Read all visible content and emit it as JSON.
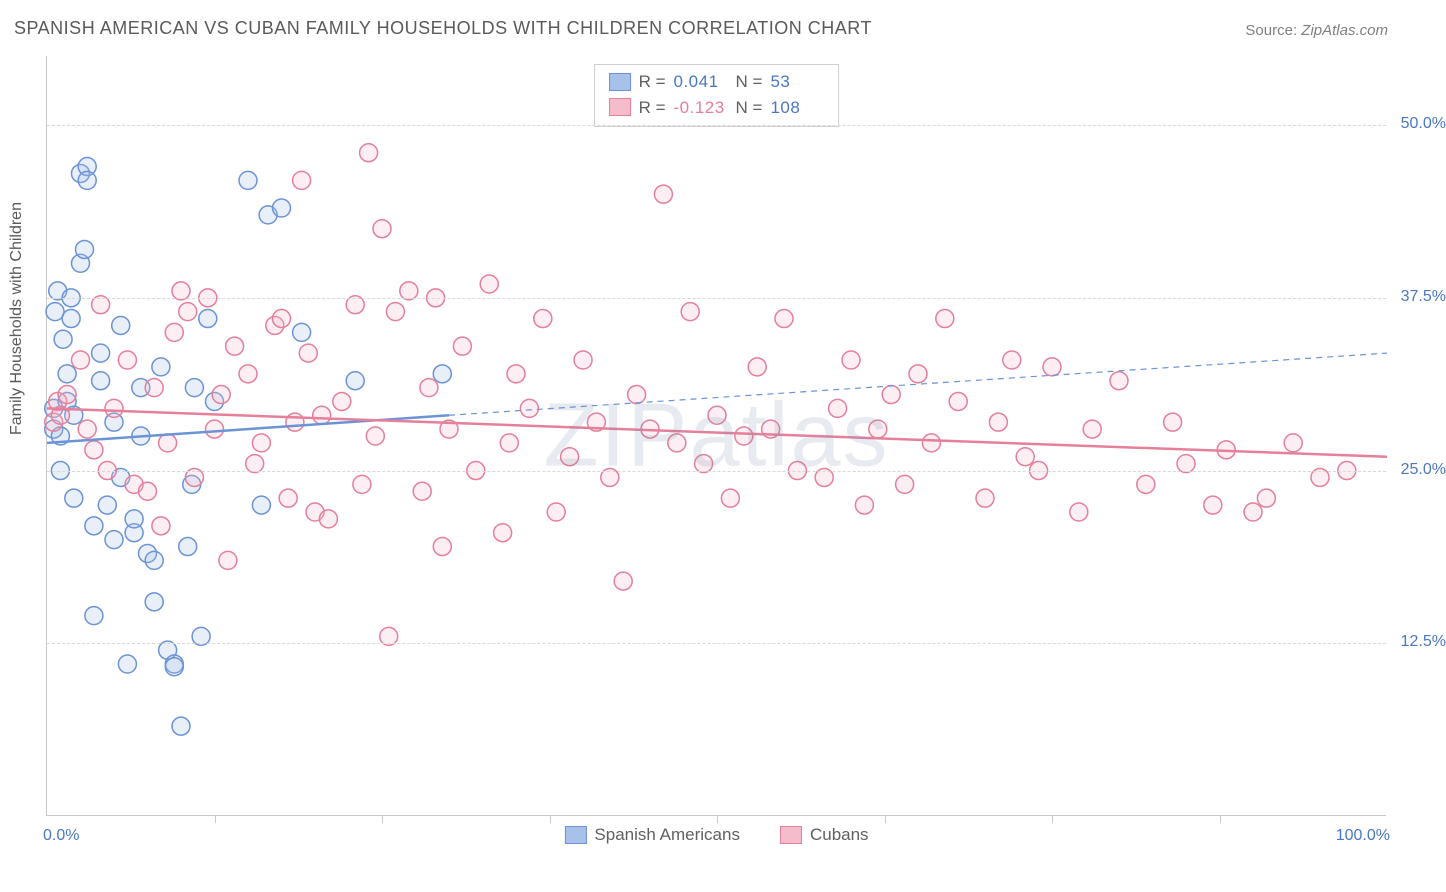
{
  "title": "SPANISH AMERICAN VS CUBAN FAMILY HOUSEHOLDS WITH CHILDREN CORRELATION CHART",
  "source_label": "Source:",
  "source_value": "ZipAtlas.com",
  "watermark": "ZIPatlas",
  "y_axis_label": "Family Households with Children",
  "chart": {
    "type": "scatter",
    "xlim": [
      0,
      100
    ],
    "ylim": [
      0,
      55
    ],
    "x_ticks": [
      0,
      100
    ],
    "x_tick_labels": [
      "0.0%",
      "100.0%"
    ],
    "x_minor_ticks": [
      12.5,
      25,
      37.5,
      50,
      62.5,
      75,
      87.5
    ],
    "y_ticks": [
      12.5,
      25.0,
      37.5,
      50.0
    ],
    "y_tick_labels": [
      "12.5%",
      "25.0%",
      "37.5%",
      "50.0%"
    ],
    "background_color": "#ffffff",
    "grid_color": "#d8d8d8",
    "axis_color": "#c8c8c8",
    "tick_label_color": "#4a77c4",
    "axis_label_color": "#5a5a5a",
    "title_color": "#5a5a5a",
    "title_fontsize": 18,
    "marker_radius": 9,
    "marker_stroke_width": 1.5,
    "marker_fill_opacity": 0.25,
    "series": [
      {
        "name": "Spanish Americans",
        "color_stroke": "#6b93d6",
        "color_fill": "#a7c1e8",
        "r_value": "0.041",
        "n_value": "53",
        "regression": {
          "x1": 0,
          "y1": 27.0,
          "x_solid_end": 30.0,
          "y_solid_end": 29.0,
          "x2": 100,
          "y2": 33.5,
          "solid_width": 2.5,
          "dash_pattern": "6,5"
        },
        "points": [
          [
            0.5,
            29.5
          ],
          [
            0.5,
            28.0
          ],
          [
            0.6,
            36.5
          ],
          [
            0.8,
            38.0
          ],
          [
            1.0,
            27.5
          ],
          [
            1.0,
            25.0
          ],
          [
            1.2,
            34.5
          ],
          [
            1.5,
            32.0
          ],
          [
            1.5,
            30.0
          ],
          [
            1.8,
            37.5
          ],
          [
            1.8,
            36.0
          ],
          [
            2.0,
            29.0
          ],
          [
            2.0,
            23.0
          ],
          [
            2.5,
            40.0
          ],
          [
            2.5,
            46.5
          ],
          [
            3.0,
            47.0
          ],
          [
            3.0,
            46.0
          ],
          [
            3.5,
            21.0
          ],
          [
            3.5,
            14.5
          ],
          [
            4.0,
            31.5
          ],
          [
            4.0,
            33.5
          ],
          [
            4.5,
            22.5
          ],
          [
            5.0,
            20.0
          ],
          [
            5.0,
            28.5
          ],
          [
            5.5,
            35.5
          ],
          [
            5.5,
            24.5
          ],
          [
            6.0,
            11.0
          ],
          [
            6.5,
            20.5
          ],
          [
            6.5,
            21.5
          ],
          [
            7.0,
            31.0
          ],
          [
            7.0,
            27.5
          ],
          [
            7.5,
            19.0
          ],
          [
            8.0,
            18.5
          ],
          [
            8.0,
            15.5
          ],
          [
            8.5,
            32.5
          ],
          [
            9.0,
            12.0
          ],
          [
            9.5,
            11.0
          ],
          [
            9.5,
            10.8
          ],
          [
            10.0,
            6.5
          ],
          [
            10.5,
            19.5
          ],
          [
            11.0,
            31.0
          ],
          [
            11.5,
            13.0
          ],
          [
            12.0,
            36.0
          ],
          [
            12.5,
            30.0
          ],
          [
            15.0,
            46.0
          ],
          [
            16.0,
            22.5
          ],
          [
            16.5,
            43.5
          ],
          [
            17.5,
            44.0
          ],
          [
            19.0,
            35.0
          ],
          [
            23.0,
            31.5
          ],
          [
            29.5,
            32.0
          ],
          [
            10.8,
            24.0
          ],
          [
            2.8,
            41.0
          ]
        ]
      },
      {
        "name": "Cubans",
        "color_stroke": "#e57f9a",
        "color_fill": "#f5bccb",
        "r_value": "-0.123",
        "n_value": "108",
        "regression": {
          "x1": 0,
          "y1": 29.5,
          "x_solid_end": 100,
          "y_solid_end": 26.0,
          "x2": 100,
          "y2": 26.0,
          "solid_width": 2.5,
          "dash_pattern": ""
        },
        "points": [
          [
            0.5,
            28.5
          ],
          [
            0.8,
            30.0
          ],
          [
            1.0,
            29.0
          ],
          [
            1.5,
            30.5
          ],
          [
            2.5,
            33.0
          ],
          [
            3.0,
            28.0
          ],
          [
            3.5,
            26.5
          ],
          [
            4.0,
            37.0
          ],
          [
            4.5,
            25.0
          ],
          [
            5.0,
            29.5
          ],
          [
            6.0,
            33.0
          ],
          [
            6.5,
            24.0
          ],
          [
            7.5,
            23.5
          ],
          [
            8.0,
            31.0
          ],
          [
            8.5,
            21.0
          ],
          [
            9.0,
            27.0
          ],
          [
            9.5,
            35.0
          ],
          [
            10.0,
            38.0
          ],
          [
            10.5,
            36.5
          ],
          [
            11.0,
            24.5
          ],
          [
            12.0,
            37.5
          ],
          [
            12.5,
            28.0
          ],
          [
            13.0,
            30.5
          ],
          [
            13.5,
            18.5
          ],
          [
            14.0,
            34.0
          ],
          [
            15.0,
            32.0
          ],
          [
            15.5,
            25.5
          ],
          [
            16.0,
            27.0
          ],
          [
            17.0,
            35.5
          ],
          [
            17.5,
            36.0
          ],
          [
            18.0,
            23.0
          ],
          [
            18.5,
            28.5
          ],
          [
            19.0,
            46.0
          ],
          [
            19.5,
            33.5
          ],
          [
            20.0,
            22.0
          ],
          [
            20.5,
            29.0
          ],
          [
            21.0,
            21.5
          ],
          [
            22.0,
            30.0
          ],
          [
            23.0,
            37.0
          ],
          [
            23.5,
            24.0
          ],
          [
            24.0,
            48.0
          ],
          [
            24.5,
            27.5
          ],
          [
            25.0,
            42.5
          ],
          [
            25.5,
            13.0
          ],
          [
            26.0,
            36.5
          ],
          [
            27.0,
            38.0
          ],
          [
            28.0,
            23.5
          ],
          [
            28.5,
            31.0
          ],
          [
            29.0,
            37.5
          ],
          [
            29.5,
            19.5
          ],
          [
            30.0,
            28.0
          ],
          [
            31.0,
            34.0
          ],
          [
            32.0,
            25.0
          ],
          [
            33.0,
            38.5
          ],
          [
            34.0,
            20.5
          ],
          [
            34.5,
            27.0
          ],
          [
            35.0,
            32.0
          ],
          [
            36.0,
            29.5
          ],
          [
            37.0,
            36.0
          ],
          [
            38.0,
            22.0
          ],
          [
            39.0,
            26.0
          ],
          [
            40.0,
            33.0
          ],
          [
            41.0,
            28.5
          ],
          [
            42.0,
            24.5
          ],
          [
            43.0,
            17.0
          ],
          [
            44.0,
            30.5
          ],
          [
            45.0,
            28.0
          ],
          [
            46.0,
            45.0
          ],
          [
            47.0,
            27.0
          ],
          [
            48.0,
            36.5
          ],
          [
            49.0,
            25.5
          ],
          [
            50.0,
            29.0
          ],
          [
            51.0,
            23.0
          ],
          [
            52.0,
            27.5
          ],
          [
            53.0,
            32.5
          ],
          [
            54.0,
            28.0
          ],
          [
            55.0,
            36.0
          ],
          [
            56.0,
            25.0
          ],
          [
            58.0,
            24.5
          ],
          [
            59.0,
            29.5
          ],
          [
            60.0,
            33.0
          ],
          [
            61.0,
            22.5
          ],
          [
            62.0,
            28.0
          ],
          [
            63.0,
            30.5
          ],
          [
            64.0,
            24.0
          ],
          [
            65.0,
            32.0
          ],
          [
            66.0,
            27.0
          ],
          [
            67.0,
            36.0
          ],
          [
            68.0,
            30.0
          ],
          [
            70.0,
            23.0
          ],
          [
            71.0,
            28.5
          ],
          [
            72.0,
            33.0
          ],
          [
            73.0,
            26.0
          ],
          [
            74.0,
            25.0
          ],
          [
            75.0,
            32.5
          ],
          [
            77.0,
            22.0
          ],
          [
            78.0,
            28.0
          ],
          [
            80.0,
            31.5
          ],
          [
            82.0,
            24.0
          ],
          [
            84.0,
            28.5
          ],
          [
            85.0,
            25.5
          ],
          [
            87.0,
            22.5
          ],
          [
            88.0,
            26.5
          ],
          [
            90.0,
            22.0
          ],
          [
            91.0,
            23.0
          ],
          [
            93.0,
            27.0
          ],
          [
            95.0,
            24.5
          ],
          [
            97.0,
            25.0
          ]
        ]
      }
    ],
    "legend_top": {
      "r_label": "R =",
      "n_label": "N ="
    },
    "legend_bottom_labels": [
      "Spanish Americans",
      "Cubans"
    ]
  }
}
